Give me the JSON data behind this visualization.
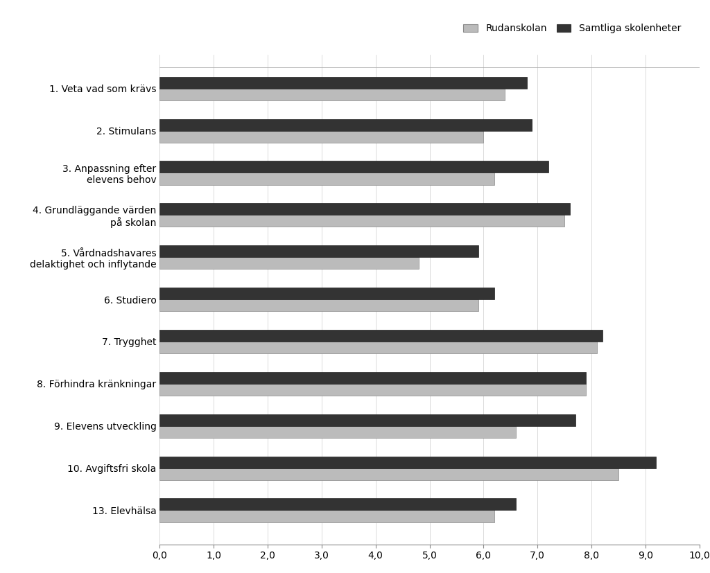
{
  "categories": [
    "1. Veta vad som krävs",
    "2. Stimulans",
    "3. Anpassning efter\nelevens behov",
    "4. Grundläggande värden\npå skolan",
    "5. Vårdnadshavares\ndelaktighet och inflytande",
    "6. Studiero",
    "7. Trygghet",
    "8. Förhindra kränkningar",
    "9. Elevens utveckling",
    "10. Avgiftsfri skola",
    "13. Elevhälsa"
  ],
  "rudanskolan": [
    6.4,
    6.0,
    6.2,
    7.5,
    4.8,
    5.9,
    8.1,
    7.9,
    6.6,
    8.5,
    6.2
  ],
  "samtliga": [
    6.8,
    6.9,
    7.2,
    7.6,
    5.9,
    6.2,
    8.2,
    7.9,
    7.7,
    9.2,
    6.6
  ],
  "rudan_color": "#bbbbbb",
  "samtliga_color": "#333333",
  "background_color": "#ffffff",
  "header_color": "#fdfde8",
  "xlim": [
    0,
    10
  ],
  "xticks": [
    0.0,
    1.0,
    2.0,
    3.0,
    4.0,
    5.0,
    6.0,
    7.0,
    8.0,
    9.0,
    10.0
  ],
  "xtick_labels": [
    "0,0",
    "1,0",
    "2,0",
    "3,0",
    "4,0",
    "5,0",
    "6,0",
    "7,0",
    "8,0",
    "9,0",
    "10,0"
  ],
  "legend_rudan": "Rudanskolan",
  "legend_samtliga": "Samtliga skolenheter",
  "bar_height": 0.28,
  "figsize": [
    10.24,
    8.27
  ],
  "dpi": 100
}
